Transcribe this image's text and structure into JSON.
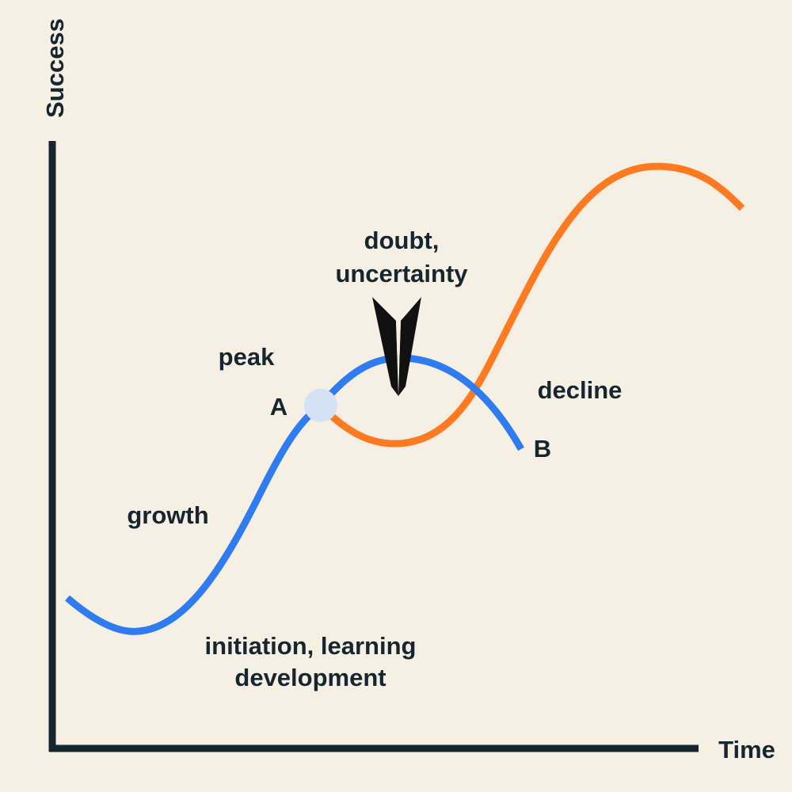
{
  "axes": {
    "y_label": "Success",
    "x_label": "Time"
  },
  "labels": {
    "doubt": [
      "doubt,",
      "uncertainty"
    ],
    "peak": "peak",
    "point_a": "A",
    "point_b": "B",
    "decline": "decline",
    "growth": "growth",
    "initiation": [
      "initiation, learning",
      "development"
    ]
  }
}
